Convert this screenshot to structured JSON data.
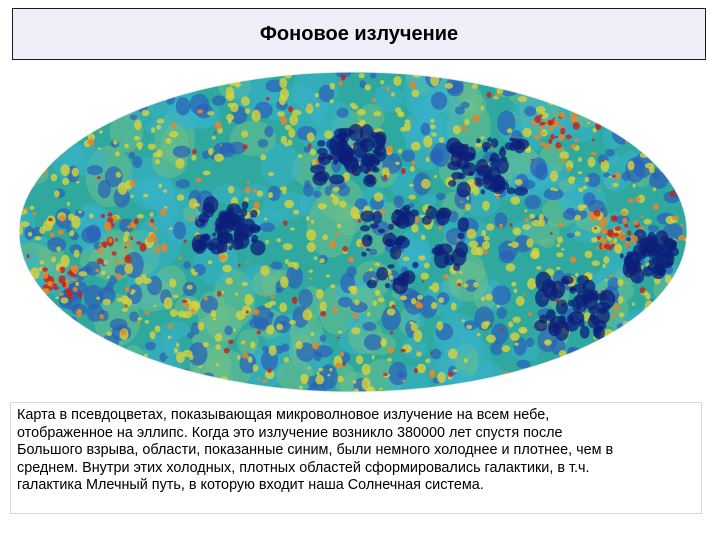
{
  "slide": {
    "title": "Фоновое излучение",
    "caption_lines": [
      "Карта в псевдоцветах, показывающая микроволновое излучение на всем небе,",
      "отображенное на эллипс. Когда это излучение возникло 380000 лет спустя после",
      "Большого взрыва, области, показанные синим, были немного холоднее и плотнее, чем в",
      "среднем. Внутри этих холодных, плотных областей сформировались галактики, в т.ч.",
      "галактика Млечный путь, в которую входит наша Солнечная система."
    ]
  },
  "map": {
    "colors": {
      "base": "#2fa8a0",
      "cold_deep": "#0c1f7a",
      "cold": "#2a5fb8",
      "cool": "#39b3c9",
      "mild": "#6cc08a",
      "warm": "#d9d23a",
      "hot": "#e8852a",
      "hottest": "#c8221c"
    }
  }
}
